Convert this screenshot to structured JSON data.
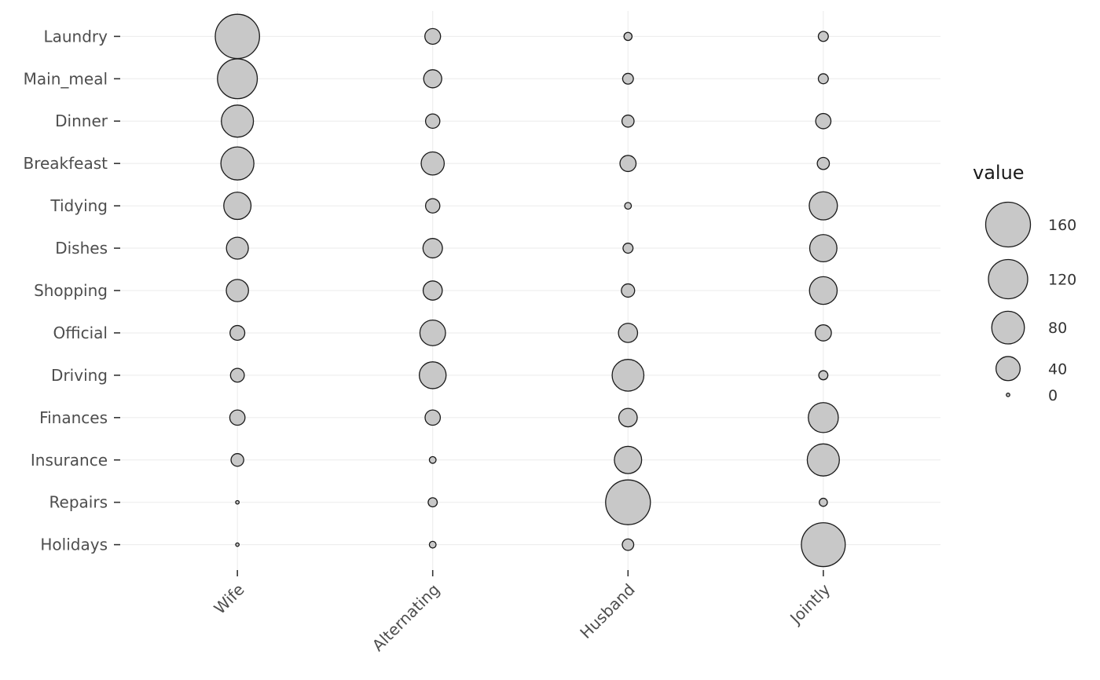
{
  "chart_data": {
    "type": "bubble",
    "title": "",
    "xlabel": "",
    "ylabel": "",
    "x_categories": [
      "Wife",
      "Alternating",
      "Husband",
      "Jointly"
    ],
    "y_categories": [
      "Laundry",
      "Main_meal",
      "Dinner",
      "Breakfeast",
      "Tidying",
      "Dishes",
      "Shopping",
      "Official",
      "Driving",
      "Finances",
      "Insurance",
      "Repairs",
      "Holidays"
    ],
    "series": [
      {
        "name": "Laundry",
        "values": [
          156,
          14,
          2,
          4
        ]
      },
      {
        "name": "Main_meal",
        "values": [
          124,
          20,
          5,
          4
        ]
      },
      {
        "name": "Dinner",
        "values": [
          77,
          11,
          7,
          13
        ]
      },
      {
        "name": "Breakfeast",
        "values": [
          82,
          36,
          15,
          7
        ]
      },
      {
        "name": "Tidying",
        "values": [
          53,
          11,
          1,
          57
        ]
      },
      {
        "name": "Dishes",
        "values": [
          32,
          24,
          4,
          53
        ]
      },
      {
        "name": "Shopping",
        "values": [
          33,
          23,
          9,
          55
        ]
      },
      {
        "name": "Official",
        "values": [
          12,
          46,
          23,
          15
        ]
      },
      {
        "name": "Driving",
        "values": [
          10,
          51,
          75,
          3
        ]
      },
      {
        "name": "Finances",
        "values": [
          13,
          13,
          21,
          66
        ]
      },
      {
        "name": "Insurance",
        "values": [
          8,
          1,
          53,
          77
        ]
      },
      {
        "name": "Repairs",
        "values": [
          0,
          3,
          160,
          2
        ]
      },
      {
        "name": "Holidays",
        "values": [
          0,
          1,
          6,
          153
        ]
      }
    ],
    "size_domain": [
      0,
      160
    ],
    "grid": "both",
    "legend": {
      "title": "value",
      "position": "right",
      "sizes": [
        160,
        120,
        80,
        40,
        0
      ]
    },
    "style": {
      "bubble_fill": "#c8c8c8",
      "bubble_stroke": "#1a1a1a",
      "grid_color": "#ebebeb",
      "tick_color": "#333333",
      "axis_label_color": "#4d4d4d",
      "legend_title_color": "#1a1a1a",
      "legend_label_color": "#333333",
      "background": "#ffffff"
    }
  }
}
